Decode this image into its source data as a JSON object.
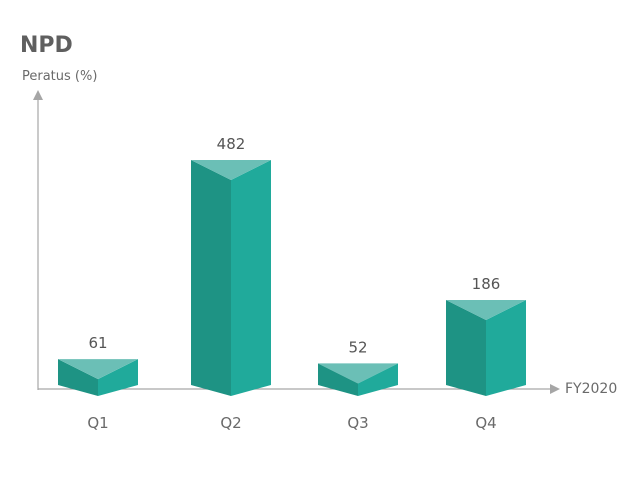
{
  "chart_data": {
    "type": "bar",
    "title": "NPD",
    "ylabel": "Peratus (%)",
    "xlabel": "FY2020",
    "categories": [
      "Q1",
      "Q2",
      "Q3",
      "Q4"
    ],
    "values": [
      61,
      482,
      52,
      186
    ],
    "ylim": [
      0,
      482
    ],
    "grid": false,
    "legend": "none",
    "colors": {
      "left_face": "#1e9384",
      "right_face": "#20aa9b",
      "top_face": "#6bbfb6",
      "axis": "#a6a6a6"
    }
  }
}
